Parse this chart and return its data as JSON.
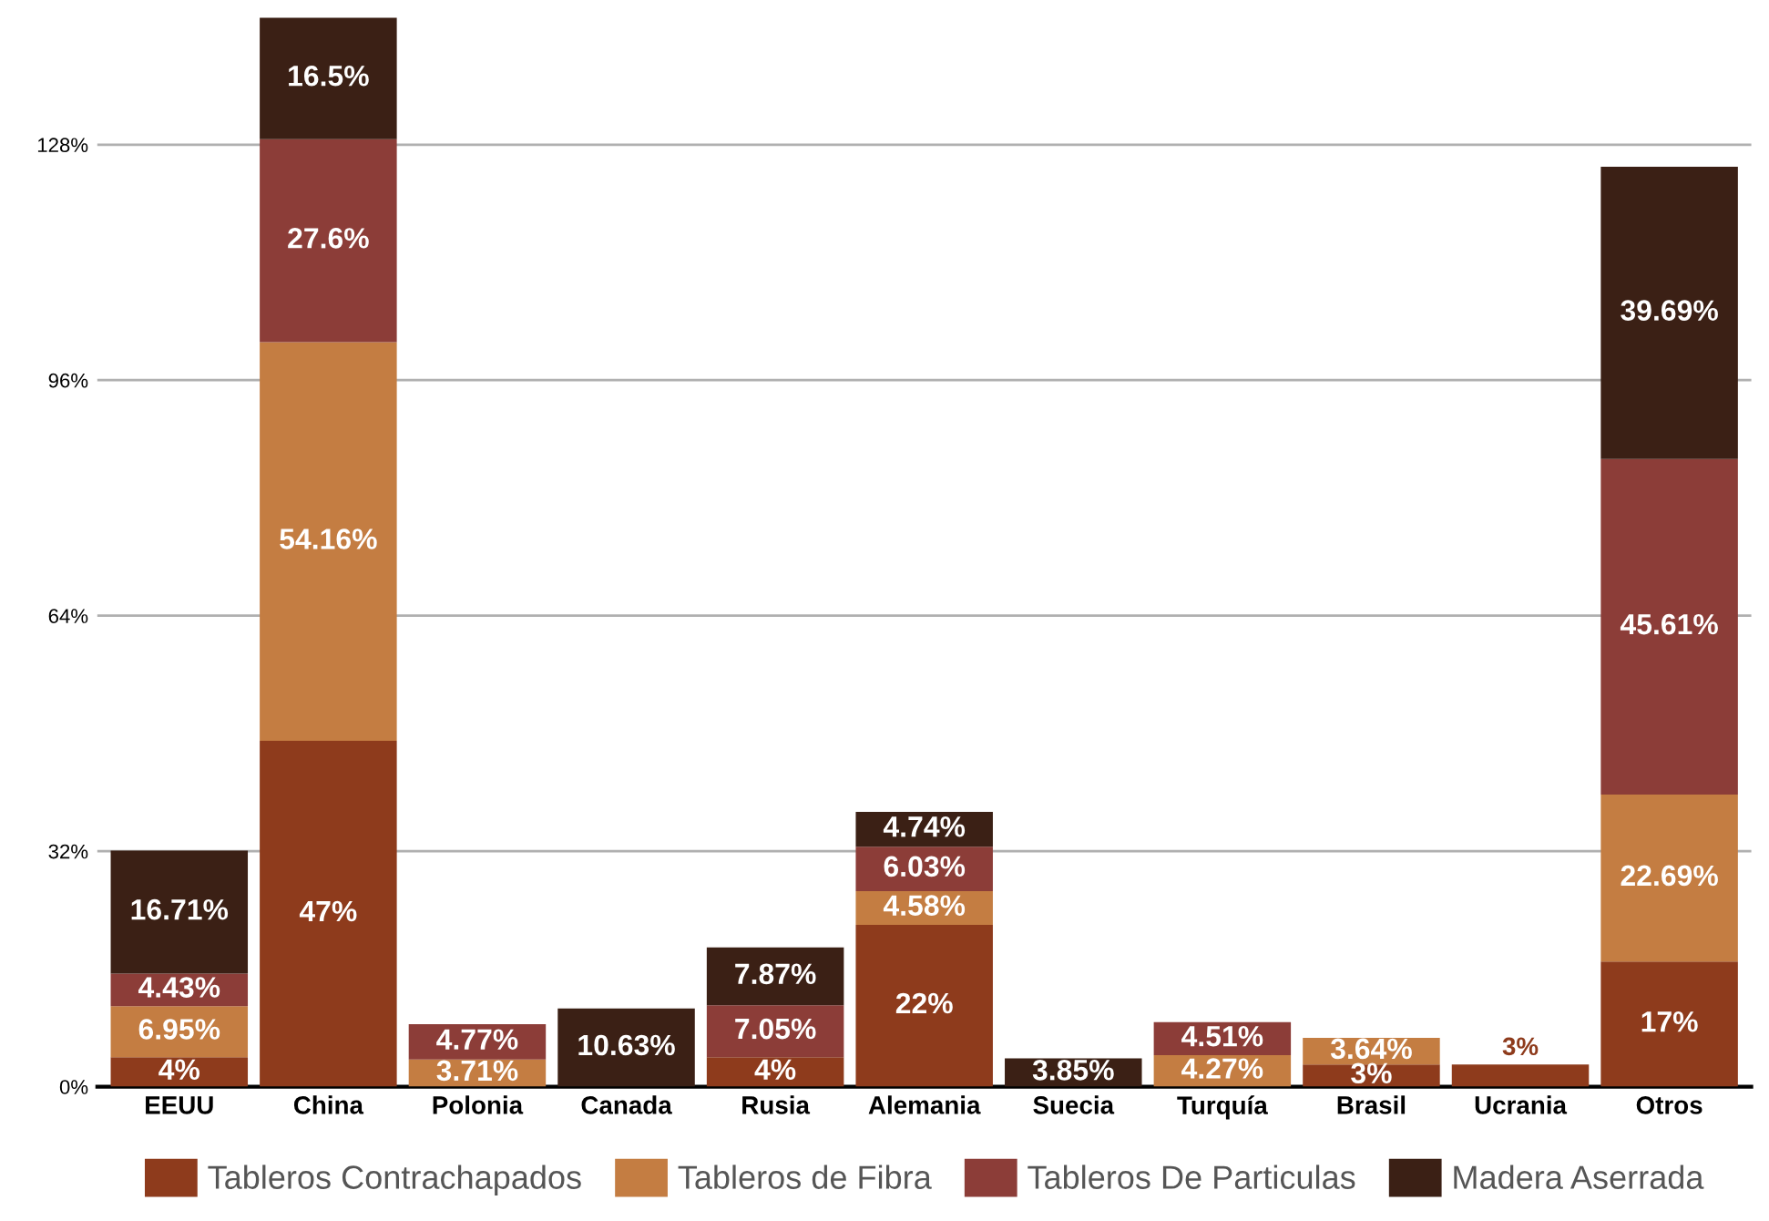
{
  "chart_data": {
    "type": "bar",
    "stacked": true,
    "categories": [
      "EEUU",
      "China",
      "Polonia",
      "Canada",
      "Rusia",
      "Alemania",
      "Suecia",
      "Turquía",
      "Brasil",
      "Ucrania",
      "Otros"
    ],
    "series": [
      {
        "name": "Tableros Contrachapados",
        "color": "#8e3b1c",
        "values": [
          4,
          47,
          null,
          null,
          4,
          22,
          null,
          null,
          3,
          3,
          17
        ],
        "value_labels": [
          "4%",
          "47%",
          null,
          null,
          "4%",
          "22%",
          null,
          null,
          "3%",
          "3%",
          "17%"
        ]
      },
      {
        "name": "Tableros de Fibra",
        "color": "#c47d42",
        "values": [
          6.95,
          54.16,
          3.71,
          null,
          null,
          4.58,
          null,
          4.27,
          3.64,
          null,
          22.69
        ],
        "value_labels": [
          "6.95%",
          "54.16%",
          "3.71%",
          null,
          null,
          "4.58%",
          null,
          "4.27%",
          "3.64%",
          null,
          "22.69%"
        ]
      },
      {
        "name": "Tableros De Particulas",
        "color": "#8c3d38",
        "values": [
          4.43,
          27.6,
          4.77,
          null,
          7.05,
          6.03,
          null,
          4.51,
          null,
          null,
          45.61
        ],
        "value_labels": [
          "4.43%",
          "27.6%",
          "4.77%",
          null,
          "7.05%",
          "6.03%",
          null,
          "4.51%",
          null,
          null,
          "45.61%"
        ]
      },
      {
        "name": "Madera Aserrada",
        "color": "#3b2015",
        "values": [
          16.71,
          16.5,
          null,
          10.63,
          7.87,
          4.74,
          3.85,
          null,
          null,
          null,
          39.69
        ],
        "value_labels": [
          "16.71%",
          "16.5%",
          null,
          "10.63%",
          "7.87%",
          "4.74%",
          "3.85%",
          null,
          null,
          null,
          "39.69%"
        ]
      }
    ],
    "ylim": [
      0,
      146
    ],
    "yticks": [
      {
        "value": 0,
        "label": "0%"
      },
      {
        "value": 32,
        "label": "32%"
      },
      {
        "value": 64,
        "label": "64%"
      },
      {
        "value": 96,
        "label": "96%"
      },
      {
        "value": 128,
        "label": "128%"
      }
    ],
    "grid": "y",
    "legend": "bottom"
  }
}
